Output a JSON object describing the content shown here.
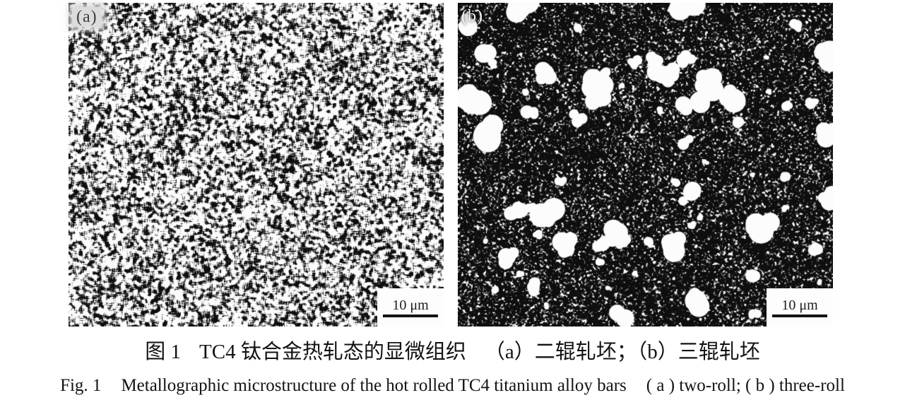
{
  "figure": {
    "panels": [
      {
        "id": "a",
        "label": "(a)",
        "scale_label": "10 μm"
      },
      {
        "id": "b",
        "label": "(b)",
        "scale_label": "10 μm"
      }
    ],
    "caption_zh": {
      "tag": "图 1",
      "title": "TC4 钛合金热轧态的显微组织",
      "subitems": "（a）二辊轧坯；（b）三辊轧坯"
    },
    "caption_en": {
      "tag": "Fig. 1",
      "title": "Metallographic microstructure of the hot rolled TC4 titanium alloy bars",
      "subitems": "( a ) two-roll; ( b ) three-roll"
    },
    "colors": {
      "page_background": "#ffffff",
      "micrograph_dark": "#0e0e0e",
      "micrograph_light": "#fcfcfc",
      "caption_text": "#121212"
    }
  }
}
